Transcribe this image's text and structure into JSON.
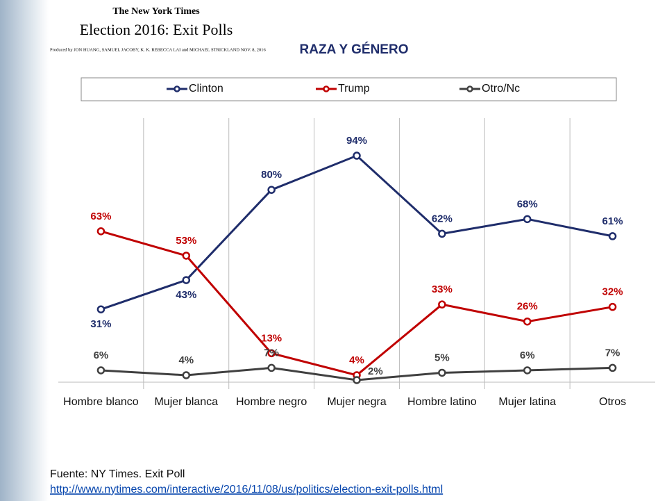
{
  "chart_data": {
    "type": "line",
    "publisher": "The New York Times",
    "headline": "Election 2016: Exit Polls",
    "byline": "Produced by JON HUANG, SAMUEL JACOBY, K. K. REBECCA LAI and MICHAEL STRICKLAND   NOV. 8, 2016",
    "title": "RAZA Y GÉNERO",
    "categories": [
      "Hombre blanco",
      "Mujer blanca",
      "Hombre negro",
      "Mujer negra",
      "Hombre latino",
      "Mujer latina",
      "Otros"
    ],
    "series": [
      {
        "name": "Clinton",
        "color": "#1f2d6b",
        "values": [
          31,
          43,
          80,
          94,
          62,
          68,
          61
        ],
        "value_labels": [
          "31%",
          "43%",
          "80%",
          "94%",
          "62%",
          "68%",
          "61%"
        ]
      },
      {
        "name": "Trump",
        "color": "#c00000",
        "values": [
          63,
          53,
          13,
          4,
          33,
          26,
          32
        ],
        "value_labels": [
          "63%",
          "53%",
          "13%",
          "4%",
          "33%",
          "26%",
          "32%"
        ]
      },
      {
        "name": "Otro/Nc",
        "color": "#404040",
        "values": [
          6,
          4,
          7,
          2,
          5,
          6,
          7
        ],
        "value_labels": [
          "6%",
          "4%",
          "7%",
          "2%",
          "5%",
          "6%",
          "7%"
        ]
      }
    ],
    "ylim": [
      0,
      100
    ],
    "source": "Fuente: NY Times. Exit Poll",
    "source_url": "http://www.nytimes.com/interactive/2016/11/08/us/politics/election-exit-polls.html"
  }
}
